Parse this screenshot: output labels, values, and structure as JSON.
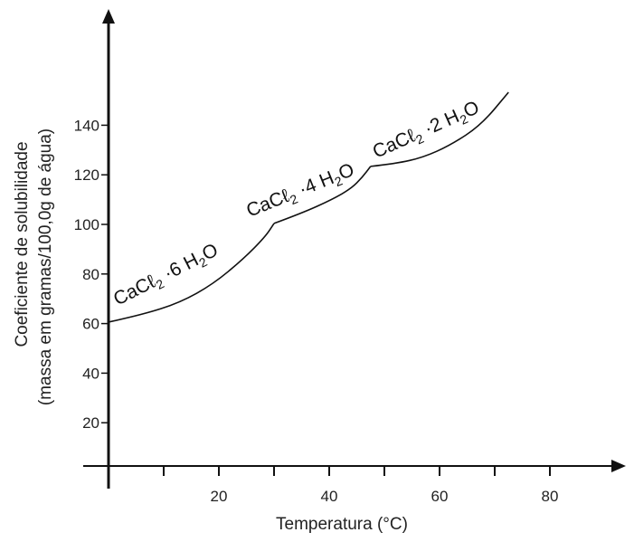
{
  "chart_data": {
    "type": "line",
    "title": "",
    "xlabel": "Temperatura (°C)",
    "ylabel": [
      "Coeficiente de solubilidade",
      "(massa em gramas/100,0g de água)"
    ],
    "xlim": [
      0,
      90
    ],
    "ylim": [
      0,
      160
    ],
    "xticks": [
      20,
      40,
      60,
      80
    ],
    "xminor": [
      10,
      30,
      50,
      70
    ],
    "yticks": [
      20,
      40,
      60,
      80,
      100,
      120,
      140
    ],
    "grid": false,
    "series": [
      {
        "name": "CaCℓ2·6H2O",
        "label": [
          "CaCℓ",
          "2",
          " ·6 H",
          "2",
          "O"
        ],
        "points": [
          [
            0,
            60.6
          ],
          [
            6,
            63.5
          ],
          [
            13,
            68.5
          ],
          [
            19,
            76
          ],
          [
            24.4,
            86
          ],
          [
            28.4,
            95
          ],
          [
            30,
            100.4
          ]
        ]
      },
      {
        "name": "CaCℓ2·4H2O",
        "label": [
          "CaCℓ",
          "2",
          " ·4 H",
          "2",
          "O"
        ],
        "points": [
          [
            30,
            100.4
          ],
          [
            35,
            104.5
          ],
          [
            40.5,
            110
          ],
          [
            44,
            114.5
          ],
          [
            46,
            119
          ],
          [
            47.5,
            123.4
          ]
        ]
      },
      {
        "name": "CaCℓ2·2H2O",
        "label": [
          "CaCℓ",
          "2",
          " ·2 H",
          "2",
          "O"
        ],
        "points": [
          [
            47.5,
            123.4
          ],
          [
            52,
            124.5
          ],
          [
            57,
            127
          ],
          [
            62,
            132
          ],
          [
            67.5,
            140
          ],
          [
            72.5,
            153.3
          ]
        ]
      }
    ]
  }
}
